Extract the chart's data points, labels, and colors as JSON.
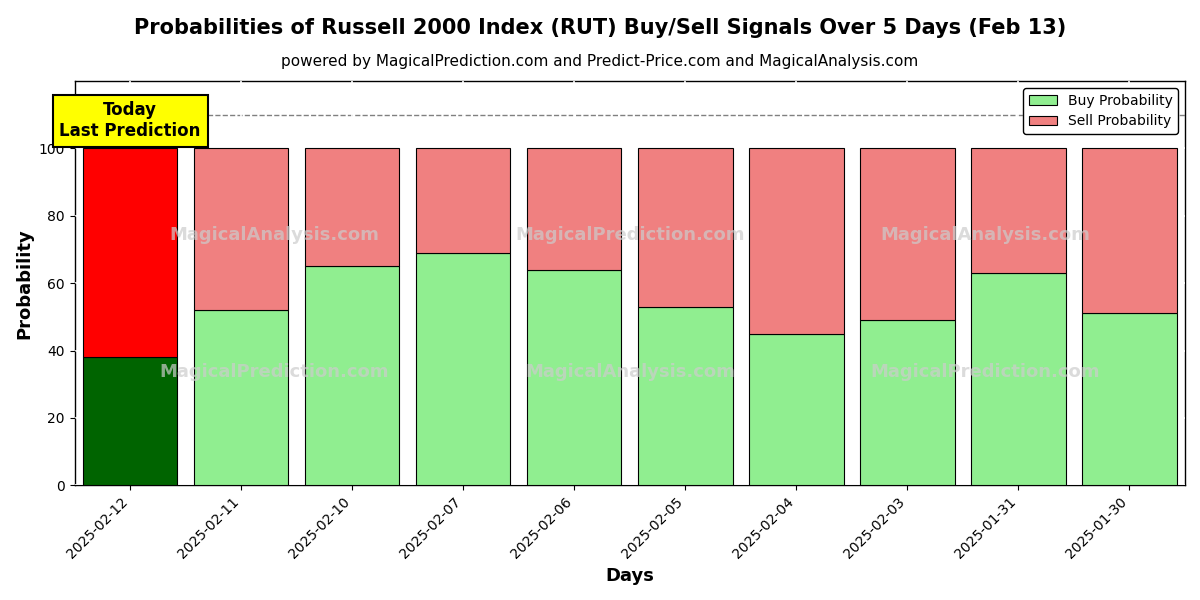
{
  "title": "Probabilities of Russell 2000 Index (RUT) Buy/Sell Signals Over 5 Days (Feb 13)",
  "subtitle": "powered by MagicalPrediction.com and Predict-Price.com and MagicalAnalysis.com",
  "xlabel": "Days",
  "ylabel": "Probability",
  "categories": [
    "2025-02-12",
    "2025-02-11",
    "2025-02-10",
    "2025-02-07",
    "2025-02-06",
    "2025-02-05",
    "2025-02-04",
    "2025-02-03",
    "2025-01-31",
    "2025-01-30"
  ],
  "buy_values": [
    38,
    52,
    65,
    69,
    64,
    53,
    45,
    49,
    63,
    51
  ],
  "sell_values": [
    62,
    48,
    35,
    31,
    36,
    47,
    55,
    51,
    37,
    49
  ],
  "buy_colors": [
    "#006400",
    "#90EE90",
    "#90EE90",
    "#90EE90",
    "#90EE90",
    "#90EE90",
    "#90EE90",
    "#90EE90",
    "#90EE90",
    "#90EE90"
  ],
  "sell_colors": [
    "#FF0000",
    "#F08080",
    "#F08080",
    "#F08080",
    "#F08080",
    "#F08080",
    "#F08080",
    "#F08080",
    "#F08080",
    "#F08080"
  ],
  "today_box_color": "#FFFF00",
  "today_label": "Today\nLast Prediction",
  "dashed_line_y": 110,
  "ylim": [
    0,
    120
  ],
  "yticks": [
    0,
    20,
    40,
    60,
    80,
    100
  ],
  "legend_buy_color": "#90EE90",
  "legend_sell_color": "#F08080",
  "background_color": "#ffffff",
  "bar_edge_color": "#000000",
  "title_fontsize": 15,
  "subtitle_fontsize": 11
}
